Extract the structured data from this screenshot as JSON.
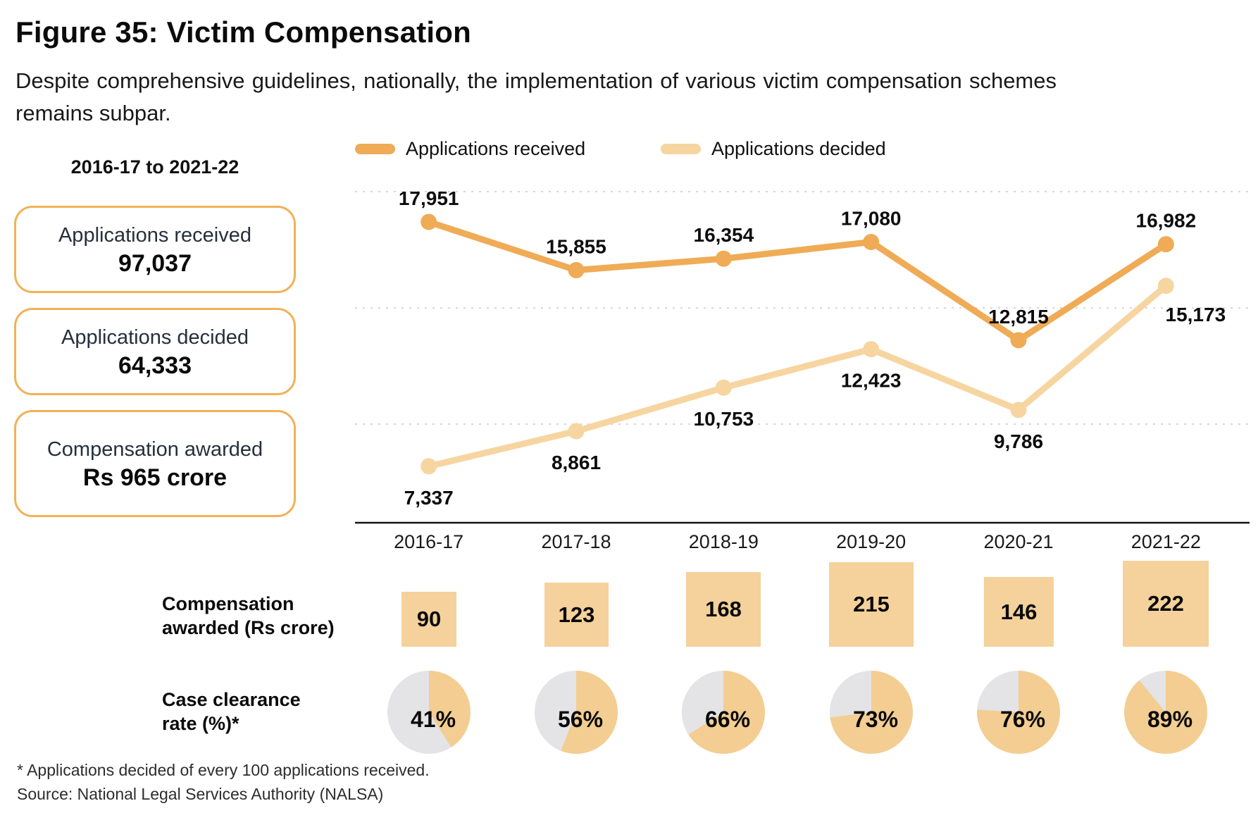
{
  "title": "Figure 35: Victim Compensation",
  "subtitle": "Despite comprehensive guidelines, nationally, the implementation of various victim compensation schemes remains subpar.",
  "summary": {
    "period": "2016-17 to 2021-22",
    "cards": [
      {
        "label": "Applications received",
        "value": "97,037"
      },
      {
        "label": "Applications decided",
        "value": "64,333"
      },
      {
        "label": "Compensation awarded",
        "value": "Rs 965 crore"
      }
    ]
  },
  "legend": [
    {
      "label": "Applications received",
      "color": "#efab55"
    },
    {
      "label": "Applications decided",
      "color": "#f6d5a0"
    }
  ],
  "footnotes": {
    "asterisk": "* Applications decided of every 100 applications received.",
    "source": "Source: National Legal Services Authority (NALSA)"
  },
  "colors": {
    "received": "#efab55",
    "decided": "#f6d5a0",
    "square_fill": "#f5d19b",
    "pie_fill": "#f3cd92",
    "pie_rest": "#e4e4e6",
    "gridline": "#d7d7d7",
    "axis": "#141414",
    "label_text": "#0d0d0d"
  },
  "chart_data": {
    "type": "line",
    "categories": [
      "2016-17",
      "2017-18",
      "2018-19",
      "2019-20",
      "2020-21",
      "2021-22"
    ],
    "series": [
      {
        "name": "Applications received",
        "values": [
          17951,
          15855,
          16354,
          17080,
          12815,
          16982
        ]
      },
      {
        "name": "Applications decided",
        "values": [
          7337,
          8861,
          10753,
          12423,
          9786,
          15173
        ]
      }
    ],
    "ylim": [
      7000,
      19500
    ],
    "grid": "dashed-horizontal, 3 lines, no y tick labels",
    "legend_position": "top",
    "point_labels": "every point labeled with comma-formatted value",
    "squares": {
      "label": "Compensation awarded (Rs crore)",
      "values": [
        90,
        123,
        168,
        215,
        146,
        222
      ],
      "note": "square area proportional to value, bottom-aligned row"
    },
    "pies": {
      "label": "Case clearance rate (%)*",
      "values": [
        41,
        56,
        66,
        73,
        76,
        89
      ],
      "unit": "%",
      "note": "orange slice clockwise from 12 o'clock, grey remainder"
    }
  }
}
